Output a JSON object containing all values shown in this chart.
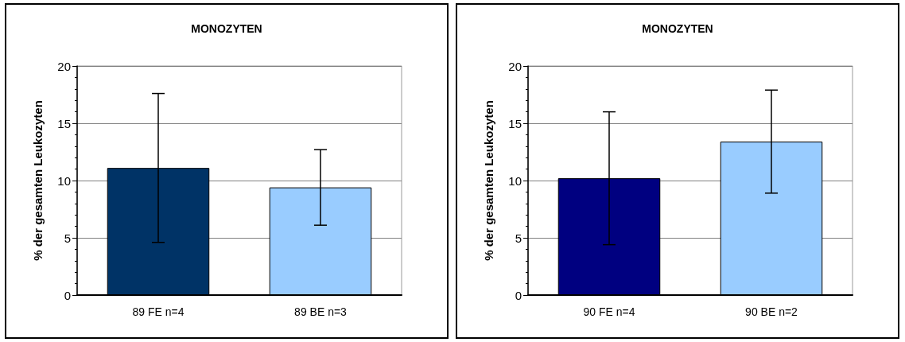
{
  "chart_data": [
    {
      "type": "bar",
      "title": "MONOZYTEN",
      "ylabel": "% der gesamten Leukozyten",
      "categories": [
        "89 FE n=4",
        "89 BE n=3"
      ],
      "values": [
        11.1,
        9.4
      ],
      "colors": [
        "#003366",
        "#99ccff"
      ],
      "errors": [
        6.5,
        3.3
      ],
      "ylim": [
        0,
        20
      ],
      "yticks": [
        0,
        5,
        10,
        15,
        20
      ],
      "grid": "y"
    },
    {
      "type": "bar",
      "title": "MONOZYTEN",
      "ylabel": "% der gesamten Leukozyten",
      "categories": [
        "90 FE n=4",
        "90 BE n=2"
      ],
      "values": [
        10.2,
        13.4
      ],
      "colors": [
        "#000080",
        "#99ccff"
      ],
      "errors": [
        5.8,
        4.5
      ],
      "ylim": [
        0,
        20
      ],
      "yticks": [
        0,
        5,
        10,
        15,
        20
      ],
      "grid": "y"
    }
  ]
}
